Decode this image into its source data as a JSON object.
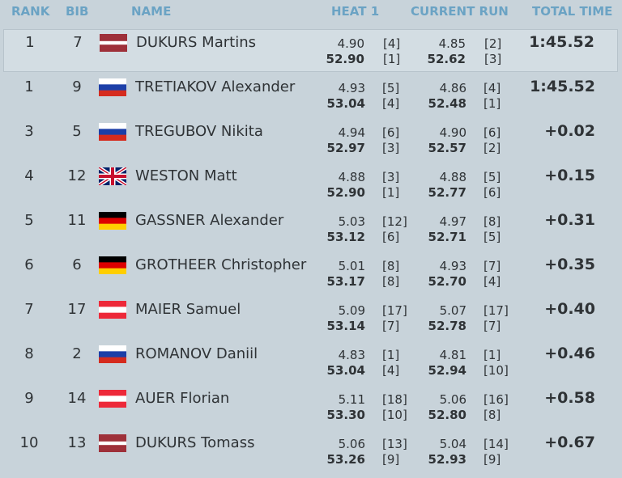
{
  "header": {
    "rank": "RANK",
    "bib": "BIB",
    "name": "NAME",
    "heat1": "HEAT 1",
    "current_run": "CURRENT RUN",
    "total_time": "TOTAL TIME"
  },
  "rows": [
    {
      "rank": "1",
      "bib": "7",
      "name": "DUKURS Martins",
      "heat1_split": "4.90",
      "heat1_split_rank": "[4]",
      "heat1_time": "52.90",
      "heat1_time_rank": "[1]",
      "run_split": "4.85",
      "run_split_rank": "[2]",
      "run_time": "52.62",
      "run_time_rank": "[3]",
      "total": "1:45.52"
    },
    {
      "rank": "1",
      "bib": "9",
      "name": "TRETIAKOV Alexander",
      "heat1_split": "4.93",
      "heat1_split_rank": "[5]",
      "heat1_time": "53.04",
      "heat1_time_rank": "[4]",
      "run_split": "4.86",
      "run_split_rank": "[4]",
      "run_time": "52.48",
      "run_time_rank": "[1]",
      "total": "1:45.52"
    },
    {
      "rank": "3",
      "bib": "5",
      "name": "TREGUBOV Nikita",
      "heat1_split": "4.94",
      "heat1_split_rank": "[6]",
      "heat1_time": "52.97",
      "heat1_time_rank": "[3]",
      "run_split": "4.90",
      "run_split_rank": "[6]",
      "run_time": "52.57",
      "run_time_rank": "[2]",
      "total": "+0.02"
    },
    {
      "rank": "4",
      "bib": "12",
      "name": "WESTON Matt",
      "heat1_split": "4.88",
      "heat1_split_rank": "[3]",
      "heat1_time": "52.90",
      "heat1_time_rank": "[1]",
      "run_split": "4.88",
      "run_split_rank": "[5]",
      "run_time": "52.77",
      "run_time_rank": "[6]",
      "total": "+0.15"
    },
    {
      "rank": "5",
      "bib": "11",
      "name": "GASSNER Alexander",
      "heat1_split": "5.03",
      "heat1_split_rank": "[12]",
      "heat1_time": "53.12",
      "heat1_time_rank": "[6]",
      "run_split": "4.97",
      "run_split_rank": "[8]",
      "run_time": "52.71",
      "run_time_rank": "[5]",
      "total": "+0.31"
    },
    {
      "rank": "6",
      "bib": "6",
      "name": "GROTHEER Christopher",
      "heat1_split": "5.01",
      "heat1_split_rank": "[8]",
      "heat1_time": "53.17",
      "heat1_time_rank": "[8]",
      "run_split": "4.93",
      "run_split_rank": "[7]",
      "run_time": "52.70",
      "run_time_rank": "[4]",
      "total": "+0.35"
    },
    {
      "rank": "7",
      "bib": "17",
      "name": "MAIER Samuel",
      "heat1_split": "5.09",
      "heat1_split_rank": "[17]",
      "heat1_time": "53.14",
      "heat1_time_rank": "[7]",
      "run_split": "5.07",
      "run_split_rank": "[17]",
      "run_time": "52.78",
      "run_time_rank": "[7]",
      "total": "+0.40"
    },
    {
      "rank": "8",
      "bib": "2",
      "name": "ROMANOV Daniil",
      "heat1_split": "4.83",
      "heat1_split_rank": "[1]",
      "heat1_time": "53.04",
      "heat1_time_rank": "[4]",
      "run_split": "4.81",
      "run_split_rank": "[1]",
      "run_time": "52.94",
      "run_time_rank": "[10]",
      "total": "+0.46"
    },
    {
      "rank": "9",
      "bib": "14",
      "name": "AUER Florian",
      "heat1_split": "5.11",
      "heat1_split_rank": "[18]",
      "heat1_time": "53.30",
      "heat1_time_rank": "[10]",
      "run_split": "5.06",
      "run_split_rank": "[16]",
      "run_time": "52.80",
      "run_time_rank": "[8]",
      "total": "+0.58"
    },
    {
      "rank": "10",
      "bib": "13",
      "name": "DUKURS Tomass",
      "heat1_split": "5.06",
      "heat1_split_rank": "[13]",
      "heat1_time": "53.26",
      "heat1_time_rank": "[9]",
      "run_split": "5.04",
      "run_split_rank": "[14]",
      "run_time": "52.93",
      "run_time_rank": "[9]",
      "total": "+0.67"
    }
  ]
}
